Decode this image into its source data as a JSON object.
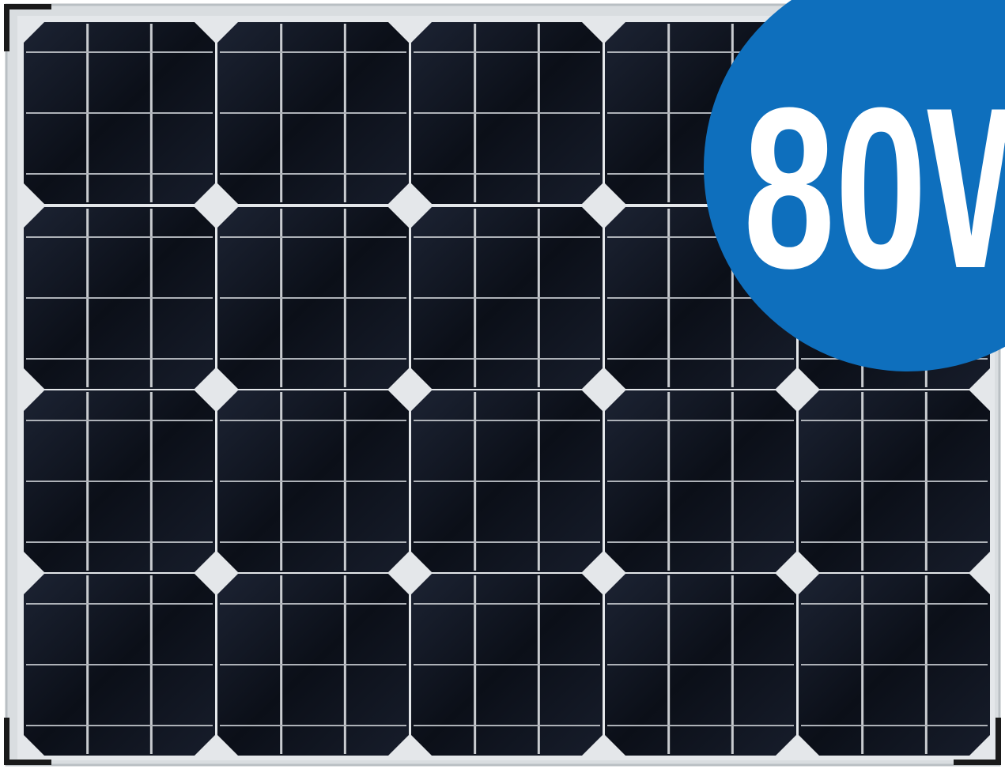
{
  "badge": {
    "text": "80W"
  }
}
